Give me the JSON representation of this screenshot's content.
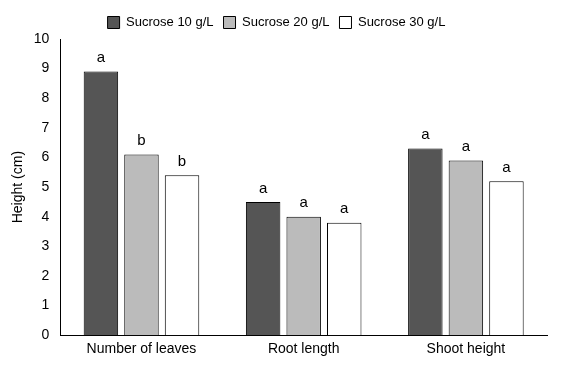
{
  "chart_data": {
    "type": "bar",
    "y_label": "Height (cm)",
    "categories": [
      "Number of leaves",
      "Root length",
      "Shoot height"
    ],
    "series": [
      {
        "name": "Sucrose 10 g/L",
        "color": "#555555",
        "values": [
          8.9,
          4.5,
          6.3
        ],
        "annotations": [
          "a",
          "a",
          "a"
        ]
      },
      {
        "name": "Sucrose 20 g/L",
        "color": "#bbbbbb",
        "values": [
          6.1,
          4.0,
          5.9
        ],
        "annotations": [
          "b",
          "a",
          "a"
        ]
      },
      {
        "name": "Sucrose 30 g/L",
        "color": "#ffffff",
        "values": [
          5.4,
          3.8,
          5.2
        ],
        "annotations": [
          "b",
          "a",
          "a"
        ]
      }
    ],
    "ylim": [
      0,
      10
    ],
    "yticks": [
      0,
      1,
      2,
      3,
      4,
      5,
      6,
      7,
      8,
      9,
      10
    ],
    "grid": false,
    "legend": "top"
  }
}
